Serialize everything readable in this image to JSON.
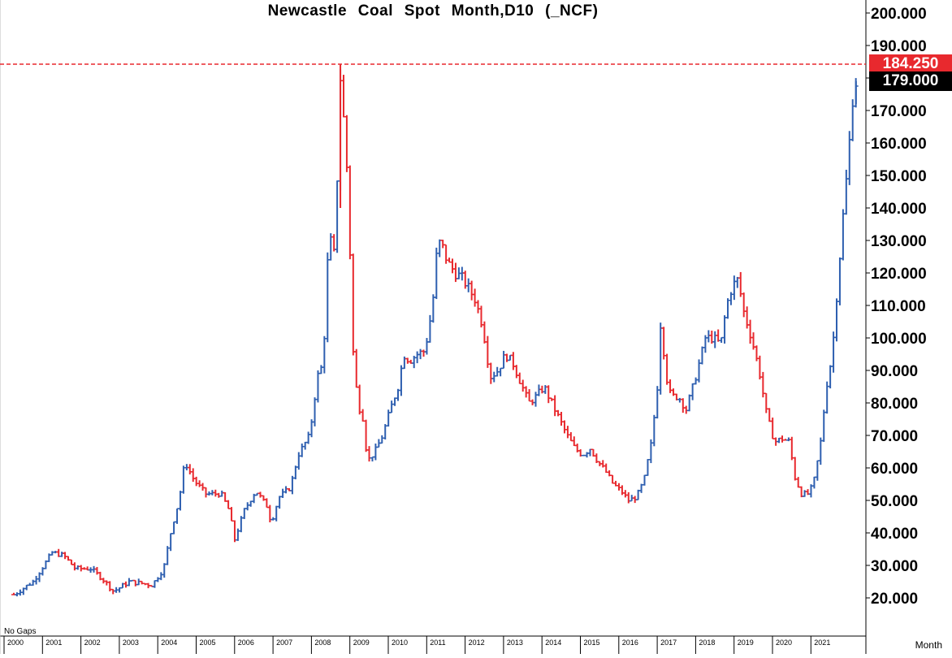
{
  "chart_data": {
    "type": "ohlc",
    "title": "Newcastle Coal Spot Month,D10 (_NCF)",
    "note": "No Gaps",
    "x_unit": "Month",
    "ylim": [
      10,
      205
    ],
    "y_ticks": [
      "20.000",
      "30.000",
      "40.000",
      "50.000",
      "60.000",
      "70.000",
      "80.000",
      "90.000",
      "100.000",
      "110.000",
      "120.000",
      "130.000",
      "140.000",
      "150.000",
      "160.000",
      "170.000",
      "180.000",
      "190.000",
      "200.000"
    ],
    "x_ticks": [
      "2000",
      "2001",
      "2002",
      "2003",
      "2004",
      "2005",
      "2006",
      "2007",
      "2008",
      "2009",
      "2010",
      "2011",
      "2012",
      "2013",
      "2014",
      "2015",
      "2016",
      "2017",
      "2018",
      "2019",
      "2020",
      "2021"
    ],
    "reference_line": {
      "value": 184.25,
      "label": "184.250",
      "color": "#e8292e"
    },
    "last_price": {
      "value": 179.0,
      "label": "179.000",
      "color": "#000000"
    },
    "colors": {
      "up": "#2e5fb0",
      "down": "#e8292e",
      "axis": "#000000"
    },
    "year_points": [
      [
        2000.0,
        21
      ],
      [
        2000.5,
        25
      ],
      [
        2001.0,
        34
      ],
      [
        2001.3,
        33
      ],
      [
        2001.6,
        29
      ],
      [
        2002.0,
        29
      ],
      [
        2002.3,
        26
      ],
      [
        2002.6,
        22
      ],
      [
        2003.0,
        25
      ],
      [
        2003.6,
        24
      ],
      [
        2003.9,
        29
      ],
      [
        2004.1,
        41
      ],
      [
        2004.3,
        50
      ],
      [
        2004.45,
        62
      ],
      [
        2004.7,
        56
      ],
      [
        2005.0,
        52
      ],
      [
        2005.4,
        52
      ],
      [
        2005.6,
        47
      ],
      [
        2005.75,
        38
      ],
      [
        2006.0,
        47
      ],
      [
        2006.3,
        53
      ],
      [
        2006.6,
        48
      ],
      [
        2006.7,
        43
      ],
      [
        2006.9,
        51
      ],
      [
        2007.2,
        54
      ],
      [
        2007.4,
        64
      ],
      [
        2007.7,
        70
      ],
      [
        2007.9,
        88
      ],
      [
        2008.05,
        92
      ],
      [
        2008.2,
        132
      ],
      [
        2008.35,
        125
      ],
      [
        2008.5,
        180
      ],
      [
        2008.62,
        162
      ],
      [
        2008.72,
        142
      ],
      [
        2008.8,
        100
      ],
      [
        2008.95,
        80
      ],
      [
        2009.1,
        75
      ],
      [
        2009.2,
        62
      ],
      [
        2009.4,
        65
      ],
      [
        2009.6,
        70
      ],
      [
        2009.8,
        78
      ],
      [
        2010.0,
        85
      ],
      [
        2010.15,
        95
      ],
      [
        2010.3,
        93
      ],
      [
        2010.5,
        95
      ],
      [
        2010.7,
        96
      ],
      [
        2010.9,
        110
      ],
      [
        2011.0,
        125
      ],
      [
        2011.1,
        130
      ],
      [
        2011.3,
        123
      ],
      [
        2011.5,
        120
      ],
      [
        2011.7,
        118
      ],
      [
        2011.9,
        114
      ],
      [
        2012.0,
        112
      ],
      [
        2012.2,
        104
      ],
      [
        2012.4,
        88
      ],
      [
        2012.6,
        90
      ],
      [
        2012.8,
        95
      ],
      [
        2013.0,
        92
      ],
      [
        2013.2,
        86
      ],
      [
        2013.4,
        80
      ],
      [
        2013.6,
        82
      ],
      [
        2013.8,
        85
      ],
      [
        2014.0,
        80
      ],
      [
        2014.2,
        75
      ],
      [
        2014.4,
        70
      ],
      [
        2014.6,
        66
      ],
      [
        2014.8,
        64
      ],
      [
        2015.0,
        66
      ],
      [
        2015.2,
        62
      ],
      [
        2015.4,
        59
      ],
      [
        2015.6,
        55
      ],
      [
        2015.8,
        53
      ],
      [
        2016.0,
        50
      ],
      [
        2016.2,
        51
      ],
      [
        2016.4,
        56
      ],
      [
        2016.6,
        68
      ],
      [
        2016.75,
        85
      ],
      [
        2016.85,
        108
      ],
      [
        2016.95,
        90
      ],
      [
        2017.1,
        82
      ],
      [
        2017.3,
        82
      ],
      [
        2017.5,
        78
      ],
      [
        2017.7,
        86
      ],
      [
        2017.9,
        95
      ],
      [
        2018.0,
        100
      ],
      [
        2018.2,
        100
      ],
      [
        2018.4,
        98
      ],
      [
        2018.55,
        110
      ],
      [
        2018.7,
        116
      ],
      [
        2018.85,
        118
      ],
      [
        2019.0,
        108
      ],
      [
        2019.2,
        100
      ],
      [
        2019.4,
        90
      ],
      [
        2019.6,
        76
      ],
      [
        2019.8,
        68
      ],
      [
        2020.0,
        69
      ],
      [
        2020.2,
        68
      ],
      [
        2020.3,
        58
      ],
      [
        2020.5,
        52
      ],
      [
        2020.7,
        52
      ],
      [
        2020.85,
        57
      ],
      [
        2021.0,
        68
      ],
      [
        2021.15,
        85
      ],
      [
        2021.3,
        95
      ],
      [
        2021.45,
        118
      ],
      [
        2021.6,
        140
      ],
      [
        2021.72,
        155
      ],
      [
        2021.82,
        173
      ],
      [
        2021.92,
        179
      ]
    ]
  }
}
